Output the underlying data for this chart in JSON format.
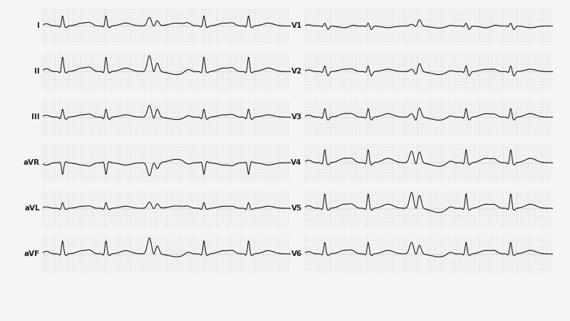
{
  "bg_color": "#f5f5f5",
  "grid_color": "#c8c8c8",
  "line_color": "#111111",
  "label_color": "#222222",
  "fig_width": 8.0,
  "fig_height": 4.5,
  "leads_left": [
    "I",
    "II",
    "III",
    "aVR",
    "aVL",
    "aVF"
  ],
  "leads_right": [
    "V1",
    "V2",
    "V3",
    "V4",
    "V5",
    "V6"
  ],
  "normal_beat_params": {
    "I": {
      "amp": 0.35,
      "p": 0.08,
      "q": -0.04,
      "s": -0.06,
      "t": 0.1
    },
    "II": {
      "amp": 0.5,
      "p": 0.1,
      "q": -0.05,
      "s": -0.05,
      "t": 0.12
    },
    "III": {
      "amp": 0.28,
      "p": 0.07,
      "q": -0.06,
      "s": -0.08,
      "t": 0.08
    },
    "aVR": {
      "amp": -0.4,
      "p": -0.08,
      "q": 0.03,
      "s": 0.04,
      "t": -0.08
    },
    "aVL": {
      "amp": 0.2,
      "p": 0.05,
      "q": -0.04,
      "s": -0.04,
      "t": 0.07
    },
    "aVF": {
      "amp": 0.45,
      "p": 0.09,
      "q": -0.05,
      "s": -0.06,
      "t": 0.11
    },
    "V1": {
      "amp": 0.1,
      "p": 0.04,
      "q": -0.02,
      "s": -0.12,
      "t": -0.06
    },
    "V2": {
      "amp": 0.2,
      "p": 0.06,
      "q": -0.03,
      "s": -0.15,
      "t": 0.08
    },
    "V3": {
      "amp": 0.3,
      "p": 0.07,
      "q": -0.04,
      "s": -0.1,
      "t": 0.12
    },
    "V4": {
      "amp": 0.45,
      "p": 0.09,
      "q": -0.05,
      "s": -0.08,
      "t": 0.15
    },
    "V5": {
      "amp": 0.5,
      "p": 0.09,
      "q": -0.05,
      "s": -0.07,
      "t": 0.14
    },
    "V6": {
      "amp": 0.4,
      "p": 0.08,
      "q": -0.04,
      "s": -0.06,
      "t": 0.12
    }
  },
  "veb_beat_params": {
    "I": {
      "r1": 0.3,
      "notch": -0.05,
      "r2": 0.18,
      "t": 0.1,
      "wide": true
    },
    "II": {
      "r1": 0.55,
      "notch": -0.08,
      "r2": 0.3,
      "t": -0.1,
      "wide": true
    },
    "III": {
      "r1": 0.4,
      "notch": -0.1,
      "r2": 0.28,
      "t": -0.08,
      "wide": true
    },
    "aVR": {
      "r1": -0.45,
      "notch": 0.05,
      "r2": -0.2,
      "t": 0.12,
      "wide": true
    },
    "aVL": {
      "r1": 0.22,
      "notch": -0.05,
      "r2": 0.15,
      "t": 0.08,
      "wide": true
    },
    "aVF": {
      "r1": 0.55,
      "notch": -0.08,
      "r2": 0.28,
      "t": -0.1,
      "wide": true
    },
    "V1": {
      "r1": 0.06,
      "notch": -0.04,
      "r2": 0.22,
      "t": -0.07,
      "wide": true
    },
    "V2": {
      "r1": 0.08,
      "notch": -0.12,
      "r2": 0.28,
      "t": -0.1,
      "wide": true
    },
    "V3": {
      "r1": 0.12,
      "notch": -0.15,
      "r2": 0.32,
      "t": -0.1,
      "wide": true
    },
    "V4": {
      "r1": 0.4,
      "notch": -0.12,
      "r2": 0.38,
      "t": -0.12,
      "wide": true
    },
    "V5": {
      "r1": 0.55,
      "notch": -0.1,
      "r2": 0.45,
      "t": -0.14,
      "wide": true
    },
    "V6": {
      "r1": 0.4,
      "notch": -0.08,
      "r2": 0.3,
      "t": -0.1,
      "wide": true
    }
  }
}
